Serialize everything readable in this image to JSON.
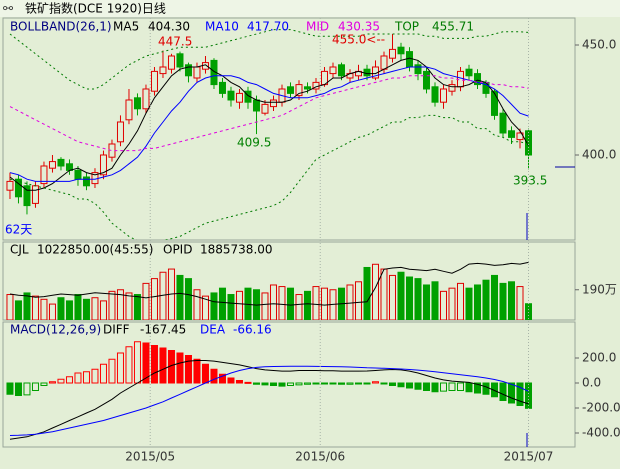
{
  "chart_data": [
    {
      "type": "candlestick",
      "title": "铁矿指数(DCE 1920)日线",
      "legend_title": "BOLLBAND(26,1)",
      "open": [
        384,
        389,
        386,
        378,
        387,
        394,
        398,
        396,
        393,
        390,
        387,
        391,
        399,
        406,
        416,
        426,
        421,
        429,
        437,
        439,
        446,
        441,
        435,
        439,
        443,
        433,
        429,
        424,
        429,
        425,
        419,
        422,
        424,
        431,
        427,
        431,
        430,
        432,
        437,
        441,
        435,
        436,
        439,
        435,
        439,
        444,
        449,
        447,
        441,
        438,
        431,
        424,
        429,
        431,
        439,
        437,
        433,
        429,
        419,
        411,
        407,
        411
      ],
      "high": [
        392,
        391,
        388,
        388,
        397,
        400,
        399,
        398,
        395,
        392,
        394,
        402,
        407,
        418,
        430,
        428,
        432,
        440,
        447.5,
        446,
        447,
        442,
        442,
        445,
        444,
        435,
        431,
        430,
        431,
        427,
        425,
        427,
        432,
        433,
        434,
        433,
        435,
        440,
        442,
        442,
        439,
        441,
        441,
        443,
        447,
        455,
        451,
        449,
        443,
        440,
        433,
        432,
        434,
        440,
        441,
        439,
        434,
        430,
        421,
        413,
        412,
        412
      ],
      "low": [
        380,
        378,
        373,
        376,
        385,
        392,
        393,
        391,
        386,
        384,
        385,
        389,
        397,
        404,
        414,
        418,
        419,
        427,
        435,
        437,
        438,
        433,
        433,
        437,
        430,
        426,
        422,
        421,
        421,
        409.5,
        418,
        420,
        422,
        426,
        425,
        428,
        428,
        431,
        435,
        434,
        433,
        434,
        434,
        434,
        437,
        442,
        443,
        438,
        434,
        428,
        422,
        421,
        427,
        429,
        434,
        430,
        426,
        416,
        408,
        405,
        403,
        393.5
      ],
      "close": [
        388,
        381,
        377,
        386,
        395,
        397,
        395,
        393,
        389,
        386,
        392,
        400,
        405,
        415,
        425,
        421,
        430,
        438,
        440,
        445,
        440,
        436,
        440,
        442,
        432,
        428,
        425,
        428,
        424,
        420,
        423,
        425,
        430,
        428,
        432,
        430,
        433,
        438,
        440,
        436,
        437,
        438,
        436,
        440,
        445,
        448,
        446,
        440,
        437,
        430,
        424,
        430,
        432,
        438,
        436,
        432,
        428,
        418,
        410,
        408,
        410,
        400
      ],
      "up_color": "#e00000",
      "down_color": "#00a000",
      "series": [
        {
          "name": "MA5",
          "value_label": "404.30",
          "color": "#000000",
          "type": "line",
          "dash": "none",
          "values": [
            390,
            387,
            384,
            384,
            385,
            387,
            390,
            393,
            394,
            392,
            391,
            392,
            394,
            400,
            405,
            411,
            419,
            426,
            431,
            436,
            439,
            440,
            440,
            441,
            438,
            436,
            433,
            431,
            427,
            425,
            424,
            424,
            424,
            425,
            428,
            429,
            431,
            432,
            435,
            435,
            437,
            438,
            437,
            437,
            439,
            441,
            443,
            444,
            443,
            440,
            435,
            432,
            431,
            431,
            432,
            434,
            433,
            428,
            421,
            415,
            411,
            404.3
          ]
        },
        {
          "name": "MA10",
          "value_label": "417.70",
          "color": "#0000ff",
          "type": "line",
          "dash": "none",
          "values": [
            392,
            391,
            389,
            388,
            388,
            388,
            388,
            388,
            389,
            389,
            389,
            390,
            391,
            393,
            396,
            399,
            404,
            410,
            415,
            420,
            424,
            429,
            433,
            435,
            436,
            436,
            436,
            435,
            433,
            432,
            430,
            428,
            427,
            426,
            426,
            426,
            427,
            428,
            430,
            431,
            433,
            434,
            435,
            436,
            437,
            438,
            439,
            440,
            440,
            440,
            439,
            437,
            436,
            435,
            434,
            433,
            432,
            430,
            427,
            423,
            419,
            417.7
          ]
        },
        {
          "name": "MID",
          "value_label": "430.35",
          "color": "#e000e0",
          "type": "line",
          "dash": "3 3",
          "values": [
            422,
            420,
            418,
            416,
            414,
            412,
            410,
            408,
            406,
            405,
            404,
            403,
            402,
            402,
            402,
            402,
            403,
            403,
            404,
            405,
            406,
            407,
            408,
            409,
            410,
            411,
            412,
            413,
            414,
            415,
            416,
            417,
            418,
            420,
            422,
            424,
            426,
            427,
            428,
            429,
            430,
            431,
            432,
            433,
            434,
            435,
            435,
            436,
            436,
            436,
            436,
            435,
            435,
            434,
            434,
            433,
            433,
            432,
            432,
            431,
            431,
            430.35
          ]
        },
        {
          "name": "TOP",
          "value_label": "455.71",
          "color": "#007a00",
          "type": "line",
          "dash": "2 3",
          "values": [
            455,
            452,
            449,
            446,
            443,
            440,
            437,
            434,
            432,
            430,
            430,
            432,
            435,
            438,
            441,
            443,
            445,
            446,
            447,
            448,
            449,
            449,
            449,
            449,
            450,
            451,
            452,
            453,
            454,
            455,
            456,
            457,
            457,
            457,
            456,
            455,
            454,
            454,
            454,
            454,
            454,
            454,
            455,
            455,
            455,
            455,
            455,
            455,
            455,
            454,
            454,
            453,
            453,
            453,
            453,
            454,
            454,
            455,
            456,
            456,
            456,
            455.71
          ]
        },
        {
          "color": "#007a00",
          "type": "line",
          "dash": "2 3",
          "values": [
            389,
            388,
            387,
            386,
            385,
            384,
            383,
            382,
            380,
            380,
            378,
            374,
            369,
            366,
            363,
            361,
            361,
            360,
            361,
            362,
            363,
            365,
            367,
            369,
            370,
            371,
            372,
            373,
            374,
            375,
            376,
            377,
            379,
            383,
            388,
            393,
            398,
            400,
            402,
            404,
            406,
            408,
            409,
            411,
            413,
            415,
            415,
            417,
            417,
            418,
            418,
            417,
            417,
            415,
            415,
            412,
            412,
            409,
            408,
            406,
            406,
            405
          ]
        }
      ],
      "xlim": [
        -0.82,
        66.47
      ],
      "ylim": [
        361.36,
        462.27
      ],
      "yticks": [
        {
          "value": 450,
          "label": "450.0"
        },
        {
          "value": 400,
          "label": "400.0"
        }
      ],
      "annotations": [
        "447.5",
        "455.0<--",
        "409.5",
        "393.5",
        "62天"
      ]
    },
    {
      "type": "bar",
      "series": [
        {
          "name": "CJL",
          "value_label": "1022850.00(45:55)",
          "type": "bar",
          "values": [
            160,
            120,
            170,
            150,
            130,
            100,
            140,
            120,
            160,
            130,
            140,
            120,
            180,
            190,
            170,
            160,
            230,
            260,
            300,
            320,
            280,
            260,
            190,
            150,
            170,
            200,
            160,
            180,
            200,
            190,
            170,
            220,
            210,
            200,
            160,
            180,
            210,
            200,
            190,
            200,
            220,
            240,
            330,
            350,
            320,
            280,
            300,
            270,
            260,
            220,
            240,
            180,
            200,
            230,
            200,
            220,
            250,
            280,
            230,
            240,
            210,
            102.285
          ]
        },
        {
          "name": "OPID",
          "value_label": "1885738.00",
          "type": "line",
          "axis": "y2",
          "color": "#000000",
          "dash": "none",
          "values": [
            140,
            138,
            137,
            135,
            136,
            138,
            140,
            139,
            138,
            140,
            142,
            141,
            140,
            139,
            137,
            136,
            134,
            136,
            138,
            140,
            141,
            139,
            136,
            132,
            128,
            127,
            126,
            125,
            124,
            123,
            124,
            125,
            124,
            123,
            124,
            125,
            124,
            123,
            124,
            125,
            126,
            127,
            128,
            150,
            178,
            180,
            181,
            178,
            177,
            176,
            178,
            175,
            172,
            178,
            186,
            187,
            186,
            184,
            185,
            187,
            186,
            188.5738
          ]
        }
      ],
      "ylim": [
        0,
        490
      ],
      "y2lim": [
        100,
        220
      ],
      "yticks": [
        {
          "value": 190,
          "label": "190万"
        }
      ]
    },
    {
      "type": "bar",
      "series": [
        {
          "name": "MACD(12,26,9)",
          "type": "bar",
          "pos_color": "#ff0000",
          "neg_color": "#00a000",
          "values": [
            -90,
            -100,
            -95,
            -60,
            -20,
            10,
            30,
            50,
            80,
            90,
            110,
            150,
            190,
            240,
            290,
            330,
            320,
            300,
            280,
            260,
            240,
            220,
            190,
            150,
            110,
            70,
            40,
            20,
            5,
            -10,
            -15,
            -20,
            -25,
            -20,
            -15,
            -10,
            -5,
            -5,
            -5,
            -10,
            -10,
            -8,
            -5,
            10,
            -5,
            -20,
            -30,
            -40,
            -50,
            -60,
            -70,
            -65,
            -60,
            -60,
            -70,
            -80,
            -90,
            -110,
            -140,
            -160,
            -180,
            -202.58
          ]
        },
        {
          "name": "DIFF",
          "value_label": "-167.45",
          "type": "line",
          "color": "#000000",
          "dash": "none",
          "values": [
            -450,
            -440,
            -430,
            -410,
            -390,
            -360,
            -330,
            -300,
            -270,
            -240,
            -210,
            -170,
            -130,
            -80,
            -40,
            0,
            40,
            80,
            110,
            140,
            160,
            175,
            180,
            180,
            175,
            165,
            155,
            145,
            130,
            115,
            105,
            100,
            95,
            95,
            100,
            100,
            100,
            98,
            98,
            95,
            95,
            95,
            96,
            100,
            105,
            108,
            105,
            95,
            80,
            60,
            40,
            25,
            15,
            10,
            5,
            -10,
            -30,
            -60,
            -90,
            -120,
            -145,
            -167.45
          ]
        },
        {
          "name": "DEA",
          "value_label": "-66.16",
          "type": "line",
          "color": "#0000ff",
          "dash": "none",
          "values": [
            -420,
            -418,
            -415,
            -410,
            -400,
            -390,
            -375,
            -360,
            -345,
            -330,
            -315,
            -300,
            -280,
            -260,
            -240,
            -220,
            -200,
            -175,
            -150,
            -120,
            -90,
            -60,
            -30,
            0,
            30,
            55,
            80,
            100,
            115,
            125,
            130,
            132,
            133,
            134,
            134,
            134,
            133,
            132,
            131,
            130,
            128,
            125,
            122,
            120,
            118,
            115,
            112,
            108,
            103,
            97,
            90,
            82,
            74,
            66,
            58,
            50,
            40,
            28,
            12,
            -10,
            -35,
            -66.16
          ]
        }
      ],
      "ylim": [
        -512,
        488
      ],
      "yticks": [
        {
          "value": 200,
          "label": "200.0"
        },
        {
          "value": 0,
          "label": "0.0"
        },
        {
          "value": -200,
          "label": "-200.0"
        },
        {
          "value": -400,
          "label": "-400.0"
        }
      ],
      "xticks": [
        {
          "value": 16.5,
          "label": "2015/05"
        },
        {
          "value": 36.5,
          "label": "2015/06"
        },
        {
          "value": 61,
          "label": "2015/07"
        }
      ]
    }
  ]
}
